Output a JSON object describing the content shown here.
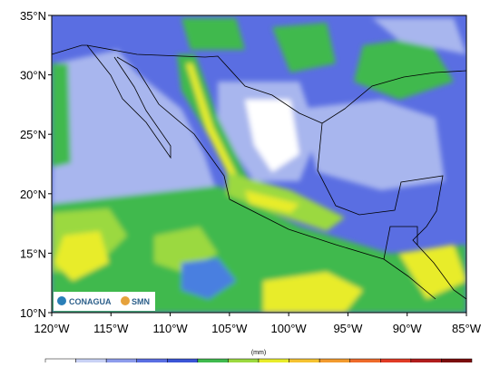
{
  "map": {
    "lat_labels": [
      "35°N",
      "30°N",
      "25°N",
      "20°N",
      "15°N",
      "10°N"
    ],
    "lon_labels": [
      "120°W",
      "115°W",
      "110°W",
      "105°W",
      "100°W",
      "95°W",
      "90°W",
      "85°W"
    ]
  },
  "colorbar": {
    "unit": "(mm)"
  },
  "logos": [
    "CONAGUA",
    "SMN"
  ]
}
